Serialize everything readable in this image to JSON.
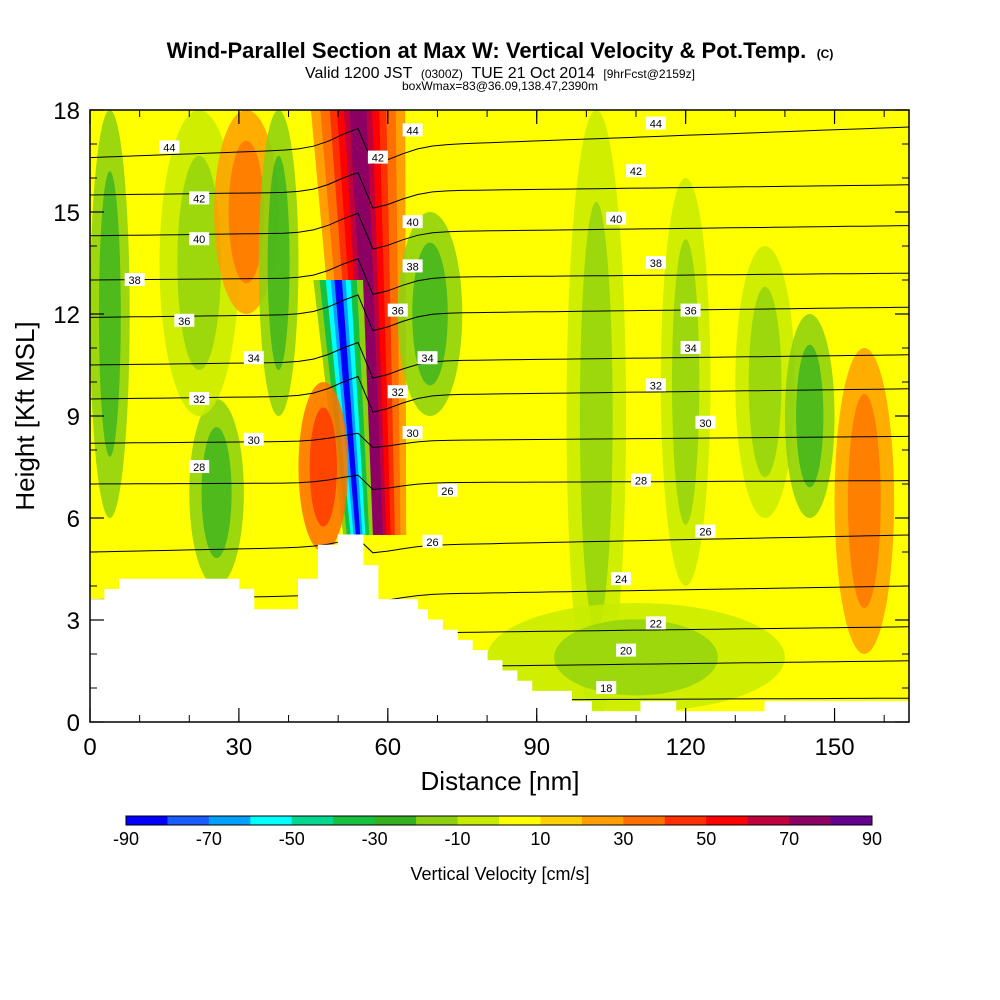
{
  "title": {
    "main": "Wind-Parallel Section at Max W: Vertical Velocity & Pot.Temp.",
    "main_suffix": "(C)",
    "line2_a": "Valid 1200 JST",
    "line2_b": "(0300Z)",
    "line2_c": "TUE 21 Oct 2014",
    "line2_d": "[9hrFcst@2159z]",
    "line3": "boxWmax=83@36.09,138.47,2390m"
  },
  "chart_data": {
    "type": "heatmap",
    "title": "Wind-Parallel Section at Max W: Vertical Velocity & Pot.Temp.",
    "xlabel": "Distance [nm]",
    "ylabel": "Height [Kft MSL]",
    "xlim": [
      0,
      165
    ],
    "ylim": [
      0,
      18
    ],
    "x_ticks": [
      0,
      30,
      60,
      90,
      120,
      150
    ],
    "x_tick_labels": [
      "0",
      "30",
      "60",
      "90",
      "120",
      "150"
    ],
    "y_ticks": [
      0,
      3,
      6,
      9,
      12,
      15,
      18
    ],
    "y_tick_labels": [
      "0",
      "3",
      "6",
      "9",
      "12",
      "15",
      "18"
    ],
    "colorbar": {
      "label": "Vertical Velocity [cm/s]",
      "tick_labels": [
        "-90",
        "-70",
        "-50",
        "-30",
        "-10",
        "10",
        "30",
        "50",
        "70",
        "90"
      ],
      "colors": [
        "#0000ff",
        "#1a5cff",
        "#00a0ff",
        "#00ffff",
        "#00d890",
        "#18c040",
        "#34b020",
        "#8cd010",
        "#c8ec00",
        "#ffff00",
        "#ffd000",
        "#ffa000",
        "#ff7000",
        "#ff3000",
        "#ff0000",
        "#c0003c",
        "#8c0064",
        "#640090"
      ]
    },
    "background_color": "#ffff00",
    "features": [
      {
        "x": [
          45,
          64
        ],
        "y": [
          5.5,
          18
        ],
        "v": 70,
        "shape": "updraft",
        "xtop": 54,
        "xbot": 58
      },
      {
        "x": [
          46,
          56
        ],
        "y": [
          5.5,
          13
        ],
        "v": -80,
        "shape": "downdraft",
        "xtop": 50,
        "xbot": 54
      },
      {
        "x": [
          0,
          8
        ],
        "y": [
          6,
          18
        ],
        "v": -20
      },
      {
        "x": [
          20,
          31
        ],
        "y": [
          4,
          9.5
        ],
        "v": -20
      },
      {
        "x": [
          14,
          30
        ],
        "y": [
          9,
          18
        ],
        "v": -10
      },
      {
        "x": [
          25,
          38
        ],
        "y": [
          12,
          18
        ],
        "v": 20
      },
      {
        "x": [
          34,
          42
        ],
        "y": [
          9,
          18
        ],
        "v": -20
      },
      {
        "x": [
          42,
          52
        ],
        "y": [
          5,
          10
        ],
        "v": 30
      },
      {
        "x": [
          62,
          75
        ],
        "y": [
          9,
          15
        ],
        "v": -20
      },
      {
        "x": [
          96,
          108
        ],
        "y": [
          0,
          18
        ],
        "v": -10
      },
      {
        "x": [
          115,
          125
        ],
        "y": [
          4,
          16
        ],
        "v": -10
      },
      {
        "x": [
          130,
          142
        ],
        "y": [
          6,
          14
        ],
        "v": -10
      },
      {
        "x": [
          140,
          150
        ],
        "y": [
          6,
          12
        ],
        "v": -20
      },
      {
        "x": [
          150,
          162
        ],
        "y": [
          2,
          11
        ],
        "v": 20
      },
      {
        "x": [
          80,
          140
        ],
        "y": [
          0.3,
          3.5
        ],
        "v": -10
      }
    ],
    "terrain": {
      "x": [
        0,
        3,
        3,
        6,
        6,
        30,
        30,
        33,
        33,
        42,
        42,
        46,
        46,
        50,
        50,
        55,
        55,
        58,
        58,
        66,
        66,
        68,
        68,
        71,
        71,
        74,
        74,
        77,
        77,
        80,
        80,
        83,
        83,
        86,
        86,
        89,
        89,
        97,
        97,
        101,
        101,
        111,
        111,
        118,
        118,
        136,
        136,
        141,
        141,
        165
      ],
      "height_kft": [
        3.6,
        3.6,
        3.9,
        3.9,
        4.2,
        4.2,
        3.9,
        3.9,
        3.3,
        3.3,
        4.2,
        4.2,
        5.2,
        5.2,
        5.5,
        5.5,
        4.6,
        4.6,
        3.6,
        3.6,
        3.3,
        3.3,
        3.0,
        3.0,
        2.7,
        2.7,
        2.4,
        2.4,
        2.1,
        2.1,
        1.8,
        1.8,
        1.5,
        1.5,
        1.2,
        1.2,
        0.9,
        0.9,
        0.6,
        0.6,
        0.3,
        0.3,
        0.6,
        0.6,
        0.3,
        0.3,
        0.6,
        0.6,
        0.6,
        0.6
      ]
    },
    "theta_contours": [
      {
        "theta": 18,
        "y_left": 0.6,
        "y_right": 0.7
      },
      {
        "theta": 20,
        "y_left": 1.5,
        "y_right": 1.8
      },
      {
        "theta": 22,
        "y_left": 2.5,
        "y_right": 2.8
      },
      {
        "theta": 24,
        "y_left": 3.6,
        "y_right": 4.0
      },
      {
        "theta": 26,
        "y_left": 5.0,
        "y_right": 5.5
      },
      {
        "theta": 28,
        "y_left": 7.0,
        "y_right": 7.1
      },
      {
        "theta": 30,
        "y_left": 8.2,
        "y_right": 8.4
      },
      {
        "theta": 32,
        "y_left": 9.5,
        "y_right": 9.8
      },
      {
        "theta": 34,
        "y_left": 10.5,
        "y_right": 10.8
      },
      {
        "theta": 36,
        "y_left": 11.9,
        "y_right": 12.2
      },
      {
        "theta": 38,
        "y_left": 13.0,
        "y_right": 13.2
      },
      {
        "theta": 40,
        "y_left": 14.3,
        "y_right": 14.6
      },
      {
        "theta": 42,
        "y_left": 15.5,
        "y_right": 15.8
      },
      {
        "theta": 44,
        "y_left": 16.6,
        "y_right": 17.5
      }
    ],
    "contour_labels": [
      {
        "text": "44",
        "x": 16,
        "y": 16.9
      },
      {
        "text": "44",
        "x": 65,
        "y": 17.4
      },
      {
        "text": "44",
        "x": 114,
        "y": 17.6
      },
      {
        "text": "42",
        "x": 22,
        "y": 15.4
      },
      {
        "text": "42",
        "x": 58,
        "y": 16.6
      },
      {
        "text": "42",
        "x": 110,
        "y": 16.2
      },
      {
        "text": "40",
        "x": 22,
        "y": 14.2
      },
      {
        "text": "40",
        "x": 65,
        "y": 14.7
      },
      {
        "text": "40",
        "x": 106,
        "y": 14.8
      },
      {
        "text": "38",
        "x": 9,
        "y": 13.0
      },
      {
        "text": "38",
        "x": 65,
        "y": 13.4
      },
      {
        "text": "38",
        "x": 114,
        "y": 13.5
      },
      {
        "text": "36",
        "x": 19,
        "y": 11.8
      },
      {
        "text": "36",
        "x": 62,
        "y": 12.1
      },
      {
        "text": "36",
        "x": 121,
        "y": 12.1
      },
      {
        "text": "34",
        "x": 33,
        "y": 10.7
      },
      {
        "text": "34",
        "x": 68,
        "y": 10.7
      },
      {
        "text": "34",
        "x": 121,
        "y": 11.0
      },
      {
        "text": "32",
        "x": 22,
        "y": 9.5
      },
      {
        "text": "32",
        "x": 62,
        "y": 9.7
      },
      {
        "text": "32",
        "x": 114,
        "y": 9.9
      },
      {
        "text": "30",
        "x": 33,
        "y": 8.3
      },
      {
        "text": "30",
        "x": 65,
        "y": 8.5
      },
      {
        "text": "30",
        "x": 124,
        "y": 8.8
      },
      {
        "text": "28",
        "x": 22,
        "y": 7.5
      },
      {
        "text": "28",
        "x": 111,
        "y": 7.1
      },
      {
        "text": "26",
        "x": 72,
        "y": 6.8
      },
      {
        "text": "26",
        "x": 69,
        "y": 5.3
      },
      {
        "text": "26",
        "x": 124,
        "y": 5.6
      },
      {
        "text": "24",
        "x": 107,
        "y": 4.2
      },
      {
        "text": "22",
        "x": 114,
        "y": 2.9
      },
      {
        "text": "20",
        "x": 108,
        "y": 2.1
      },
      {
        "text": "18",
        "x": 104,
        "y": 1.0
      }
    ]
  }
}
